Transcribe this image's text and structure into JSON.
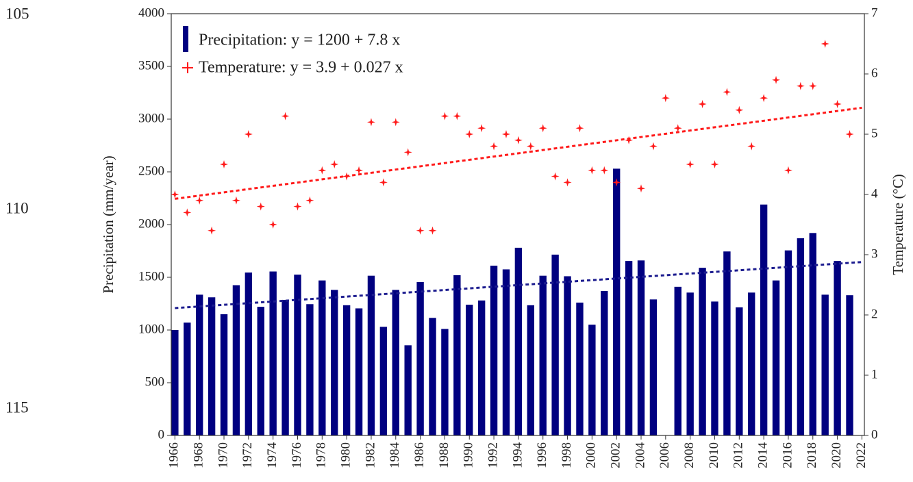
{
  "line_numbers": [
    "105",
    "110",
    "115"
  ],
  "chart_data": {
    "type": "bar_scatter",
    "ylabel": "Precipitation  (mm/year)",
    "y2label": "Temperature (°C)",
    "x": [
      1966,
      1967,
      1968,
      1969,
      1970,
      1971,
      1972,
      1973,
      1974,
      1975,
      1976,
      1977,
      1978,
      1979,
      1980,
      1981,
      1982,
      1983,
      1984,
      1985,
      1986,
      1987,
      1988,
      1989,
      1990,
      1991,
      1992,
      1993,
      1994,
      1995,
      1996,
      1997,
      1998,
      1999,
      2000,
      2001,
      2002,
      2003,
      2004,
      2005,
      2006,
      2007,
      2008,
      2009,
      2010,
      2011,
      2012,
      2013,
      2014,
      2015,
      2016,
      2017,
      2018,
      2019,
      2020,
      2021,
      2022
    ],
    "xlim": [
      1965.7,
      2022.2
    ],
    "xticks": [
      1966,
      1968,
      1970,
      1972,
      1974,
      1976,
      1978,
      1980,
      1982,
      1984,
      1986,
      1988,
      1990,
      1992,
      1994,
      1996,
      1998,
      2000,
      2002,
      2004,
      2006,
      2008,
      2010,
      2012,
      2014,
      2016,
      2018,
      2020,
      2022
    ],
    "ylim": [
      0,
      4000
    ],
    "yticks": [
      0,
      500,
      1000,
      1500,
      2000,
      2500,
      3000,
      3500,
      4000
    ],
    "y2lim": [
      0,
      7
    ],
    "y2ticks": [
      0,
      1,
      2,
      3,
      4,
      5,
      6,
      7
    ],
    "series": [
      {
        "name": "Precipitation: y = 1200 + 7.8 x",
        "kind": "bar",
        "color": "#000080",
        "trend": {
          "intercept": 1200,
          "slope": 7.8
        },
        "trend_color": "#1c1c8f",
        "values": [
          1000,
          1070,
          1335,
          1310,
          1150,
          1425,
          1545,
          1220,
          1555,
          1285,
          1525,
          1245,
          1470,
          1380,
          1235,
          1205,
          1515,
          1030,
          1380,
          855,
          1455,
          1115,
          1010,
          1520,
          1240,
          1280,
          1610,
          1575,
          1780,
          1235,
          1515,
          1715,
          1510,
          1260,
          1050,
          1370,
          2530,
          1655,
          1660,
          1290,
          null,
          1410,
          1355,
          1590,
          1270,
          1745,
          1215,
          1355,
          2190,
          1470,
          1755,
          1870,
          1920,
          1335,
          1655,
          1330,
          null
        ]
      },
      {
        "name": "Temperature: y = 3.9 + 0.027 x",
        "kind": "scatter",
        "axis": "y2",
        "color": "#ff1a1a",
        "trend": {
          "intercept": 3.9,
          "slope": 0.027
        },
        "trend_color": "#ff1a1a",
        "values": [
          4.0,
          3.7,
          3.9,
          3.4,
          4.5,
          3.9,
          5.0,
          3.8,
          3.5,
          5.3,
          3.8,
          3.9,
          4.4,
          4.5,
          4.3,
          4.4,
          5.2,
          4.2,
          5.2,
          4.7,
          3.4,
          3.4,
          5.3,
          5.3,
          5.0,
          5.1,
          4.8,
          5.0,
          4.9,
          4.8,
          5.1,
          4.3,
          4.2,
          5.1,
          4.4,
          4.4,
          4.2,
          4.9,
          4.1,
          4.8,
          5.6,
          5.1,
          4.5,
          5.5,
          4.5,
          5.7,
          5.4,
          4.8,
          5.6,
          5.9,
          4.4,
          5.8,
          5.8,
          6.5,
          5.5,
          5.0,
          null
        ]
      }
    ]
  }
}
